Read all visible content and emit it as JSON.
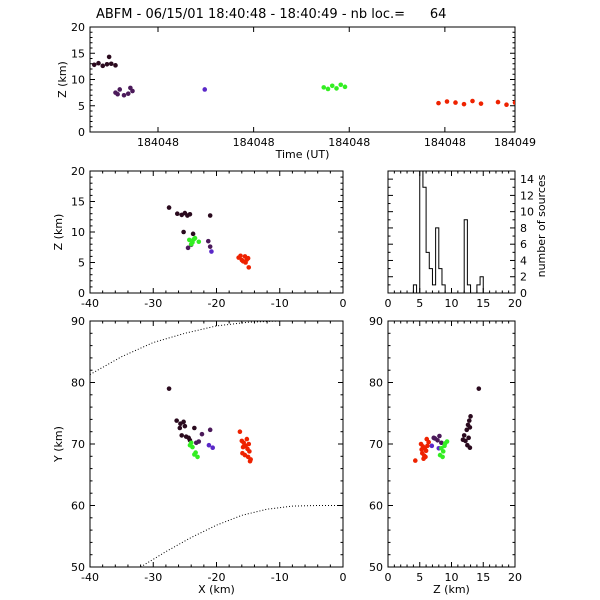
{
  "title": "ABFM - 06/15/01 18:40:48 - 18:40:49 - nb loc.=      64",
  "chart_data": [
    {
      "type": "scatter",
      "panel": "time-altitude",
      "xlabel": "Time (UT)",
      "ylabel": "Z (km)",
      "x_tick_labels": [
        "184048",
        "184048",
        "184048",
        "184048",
        "184049"
      ],
      "ylim": [
        0,
        20
      ],
      "y_ticks": [
        0,
        5,
        10,
        15,
        20
      ],
      "series": [
        {
          "color": "#2a0a1e",
          "points": [
            [
              0.01,
              12.8
            ],
            [
              0.02,
              13.1
            ],
            [
              0.03,
              12.6
            ],
            [
              0.04,
              12.9
            ],
            [
              0.05,
              13.0
            ],
            [
              0.06,
              12.7
            ],
            [
              0.045,
              14.3
            ]
          ]
        },
        {
          "color": "#4b1a5a",
          "points": [
            [
              0.06,
              7.5
            ],
            [
              0.065,
              7.2
            ],
            [
              0.07,
              8.1
            ],
            [
              0.08,
              7.0
            ],
            [
              0.09,
              7.3
            ],
            [
              0.095,
              8.4
            ],
            [
              0.1,
              7.8
            ]
          ]
        },
        {
          "color": "#5a28c8",
          "points": [
            [
              0.27,
              8.1
            ]
          ]
        },
        {
          "color": "#33ee22",
          "points": [
            [
              0.55,
              8.5
            ],
            [
              0.56,
              8.2
            ],
            [
              0.57,
              8.8
            ],
            [
              0.58,
              8.3
            ],
            [
              0.59,
              9.0
            ],
            [
              0.6,
              8.6
            ]
          ]
        },
        {
          "color": "#ee2200",
          "points": [
            [
              0.82,
              5.5
            ],
            [
              0.84,
              5.8
            ],
            [
              0.86,
              5.6
            ],
            [
              0.88,
              5.3
            ],
            [
              0.9,
              5.9
            ],
            [
              0.92,
              5.4
            ],
            [
              0.96,
              5.7
            ],
            [
              0.98,
              5.2
            ],
            [
              1.0,
              5.6
            ]
          ]
        }
      ]
    },
    {
      "type": "scatter",
      "panel": "x-altitude",
      "xlabel": "",
      "ylabel": "Z (km)",
      "xlim": [
        -40,
        0
      ],
      "x_ticks": [
        -40,
        -30,
        -20,
        -10,
        0
      ],
      "ylim": [
        0,
        20
      ],
      "y_ticks": [
        0,
        5,
        10,
        15,
        20
      ],
      "series": [
        {
          "color": "#2a0a1e",
          "points": [
            [
              -27.5,
              14.0
            ],
            [
              -26.2,
              13.0
            ],
            [
              -25.5,
              12.8
            ],
            [
              -25.0,
              13.1
            ],
            [
              -24.6,
              12.7
            ],
            [
              -24.2,
              12.9
            ],
            [
              -21.0,
              12.7
            ],
            [
              -25.2,
              10.0
            ],
            [
              -23.7,
              9.7
            ]
          ]
        },
        {
          "color": "#4b1a5a",
          "points": [
            [
              -24.5,
              7.4
            ],
            [
              -24.0,
              7.9
            ],
            [
              -21.3,
              8.5
            ],
            [
              -21.0,
              7.6
            ]
          ]
        },
        {
          "color": "#5a28c8",
          "points": [
            [
              -20.8,
              6.8
            ]
          ]
        },
        {
          "color": "#33ee22",
          "points": [
            [
              -24.3,
              8.7
            ],
            [
              -23.8,
              8.3
            ],
            [
              -23.4,
              9.0
            ],
            [
              -24.0,
              8.0
            ],
            [
              -22.8,
              8.4
            ],
            [
              -23.6,
              8.8
            ]
          ]
        },
        {
          "color": "#ee2200",
          "points": [
            [
              -16.5,
              5.8
            ],
            [
              -16.0,
              5.4
            ],
            [
              -15.5,
              6.0
            ],
            [
              -15.2,
              5.5
            ],
            [
              -15.8,
              5.2
            ],
            [
              -15.0,
              5.7
            ],
            [
              -14.9,
              4.2
            ],
            [
              -16.2,
              6.1
            ],
            [
              -15.4,
              5.0
            ]
          ]
        }
      ]
    },
    {
      "type": "histogram",
      "panel": "altitude-histogram",
      "xlabel": "",
      "ylabel": "number of sources",
      "xlim": [
        0,
        20
      ],
      "x_ticks": [
        0,
        5,
        10,
        15,
        20
      ],
      "ylim": [
        0,
        15
      ],
      "y_ticks": [
        0,
        2,
        4,
        6,
        8,
        10,
        12,
        14
      ],
      "bin_width": 0.5,
      "bins": [
        [
          0,
          0
        ],
        [
          0.5,
          0
        ],
        [
          1,
          0
        ],
        [
          1.5,
          0
        ],
        [
          2,
          0
        ],
        [
          2.5,
          0
        ],
        [
          3,
          0
        ],
        [
          3.5,
          0
        ],
        [
          4,
          1
        ],
        [
          4.5,
          0
        ],
        [
          5,
          15
        ],
        [
          5.5,
          13
        ],
        [
          6,
          5
        ],
        [
          6.5,
          3
        ],
        [
          7,
          1
        ],
        [
          7.5,
          8
        ],
        [
          8,
          3
        ],
        [
          8.5,
          1
        ],
        [
          9,
          0
        ],
        [
          9.5,
          0
        ],
        [
          10,
          0
        ],
        [
          10.5,
          0
        ],
        [
          11,
          0
        ],
        [
          11.5,
          0
        ],
        [
          12,
          9
        ],
        [
          12.5,
          1
        ],
        [
          13,
          0
        ],
        [
          13.5,
          0
        ],
        [
          14,
          1
        ],
        [
          14.5,
          2
        ],
        [
          15,
          0
        ],
        [
          15.5,
          0
        ],
        [
          16,
          0
        ],
        [
          16.5,
          0
        ],
        [
          17,
          0
        ],
        [
          17.5,
          0
        ],
        [
          18,
          0
        ],
        [
          18.5,
          0
        ],
        [
          19,
          0
        ],
        [
          19.5,
          0
        ]
      ]
    },
    {
      "type": "scatter",
      "panel": "plan-view",
      "xlabel": "X (km)",
      "ylabel": "Y (km)",
      "xlim": [
        -40,
        0
      ],
      "x_ticks": [
        -40,
        -30,
        -20,
        -10,
        0
      ],
      "ylim": [
        50,
        90
      ],
      "y_ticks": [
        50,
        60,
        70,
        80,
        90
      ],
      "range_ring_inner": [
        [
          -40,
          81.3
        ],
        [
          -35,
          84.2
        ],
        [
          -30,
          86.5
        ],
        [
          -25,
          88.0
        ],
        [
          -20,
          89.2
        ],
        [
          -15,
          89.8
        ],
        [
          -10,
          90.0
        ]
      ],
      "range_ring_outer": [
        [
          -32,
          50
        ],
        [
          -28,
          52.5
        ],
        [
          -24,
          54.8
        ],
        [
          -20,
          56.8
        ],
        [
          -16,
          58.4
        ],
        [
          -12,
          59.4
        ],
        [
          -8,
          59.9
        ],
        [
          -4,
          60.0
        ],
        [
          0,
          60.0
        ]
      ],
      "series": [
        {
          "color": "#2a0a1e",
          "points": [
            [
              -27.5,
              79.0
            ],
            [
              -26.3,
              73.8
            ],
            [
              -25.7,
              73.3
            ],
            [
              -25.2,
              73.6
            ],
            [
              -25.8,
              72.6
            ],
            [
              -25.0,
              72.9
            ],
            [
              -24.8,
              71.2
            ],
            [
              -24.4,
              71.0
            ],
            [
              -24.2,
              70.6
            ],
            [
              -23.5,
              72.6
            ],
            [
              -25.5,
              71.4
            ]
          ]
        },
        {
          "color": "#4b1a5a",
          "points": [
            [
              -23.2,
              70.2
            ],
            [
              -22.3,
              71.6
            ],
            [
              -22.8,
              70.4
            ],
            [
              -21.0,
              72.3
            ]
          ]
        },
        {
          "color": "#5a28c8",
          "points": [
            [
              -21.2,
              69.8
            ],
            [
              -20.6,
              69.4
            ]
          ]
        },
        {
          "color": "#33ee22",
          "points": [
            [
              -24.0,
              70.2
            ],
            [
              -23.8,
              69.5
            ],
            [
              -23.5,
              68.3
            ],
            [
              -23.0,
              67.9
            ],
            [
              -23.3,
              68.6
            ],
            [
              -24.2,
              69.8
            ]
          ]
        },
        {
          "color": "#ee2200",
          "points": [
            [
              -16.3,
              72.0
            ],
            [
              -16.0,
              70.5
            ],
            [
              -15.7,
              70.2
            ],
            [
              -15.4,
              69.7
            ],
            [
              -15.1,
              69.2
            ],
            [
              -14.8,
              68.8
            ],
            [
              -15.9,
              68.5
            ],
            [
              -15.5,
              68.2
            ],
            [
              -15.0,
              67.9
            ],
            [
              -14.6,
              67.5
            ],
            [
              -14.7,
              67.2
            ],
            [
              -15.8,
              69.5
            ],
            [
              -15.2,
              70.8
            ],
            [
              -14.9,
              70.0
            ]
          ]
        }
      ]
    },
    {
      "type": "scatter",
      "panel": "altitude-y",
      "xlabel": "Z (km)",
      "ylabel": "",
      "xlim": [
        0,
        20
      ],
      "x_ticks": [
        0,
        5,
        10,
        15,
        20
      ],
      "ylim": [
        50,
        90
      ],
      "y_ticks": [
        50,
        60,
        70,
        80,
        90
      ],
      "series": [
        {
          "color": "#2a0a1e",
          "points": [
            [
              14.3,
              79.0
            ],
            [
              12.8,
              73.8
            ],
            [
              12.6,
              73.1
            ],
            [
              12.9,
              72.7
            ],
            [
              12.4,
              72.3
            ],
            [
              12.0,
              71.4
            ],
            [
              12.7,
              71.0
            ],
            [
              12.2,
              70.5
            ],
            [
              13.0,
              74.5
            ],
            [
              12.5,
              69.8
            ],
            [
              12.9,
              69.4
            ],
            [
              11.8,
              70.7
            ]
          ]
        },
        {
          "color": "#4b1a5a",
          "points": [
            [
              7.4,
              70.9
            ],
            [
              7.8,
              70.6
            ],
            [
              8.1,
              71.3
            ],
            [
              8.4,
              70.2
            ],
            [
              7.2,
              71.0
            ]
          ]
        },
        {
          "color": "#5a28c8",
          "points": [
            [
              6.9,
              69.7
            ],
            [
              8.0,
              69.3
            ]
          ]
        },
        {
          "color": "#33ee22",
          "points": [
            [
              8.4,
              69.3
            ],
            [
              8.7,
              68.8
            ],
            [
              9.0,
              70.1
            ],
            [
              8.2,
              68.2
            ],
            [
              8.6,
              67.9
            ],
            [
              9.3,
              70.4
            ],
            [
              8.9,
              69.7
            ]
          ]
        },
        {
          "color": "#ee2200",
          "points": [
            [
              5.2,
              70.0
            ],
            [
              5.5,
              69.6
            ],
            [
              5.8,
              69.3
            ],
            [
              6.0,
              68.9
            ],
            [
              5.4,
              68.5
            ],
            [
              5.7,
              68.1
            ],
            [
              6.2,
              69.7
            ],
            [
              5.6,
              67.6
            ],
            [
              6.4,
              70.3
            ],
            [
              4.3,
              67.3
            ],
            [
              5.9,
              67.9
            ],
            [
              6.1,
              70.8
            ],
            [
              5.3,
              69.1
            ]
          ]
        }
      ]
    }
  ]
}
